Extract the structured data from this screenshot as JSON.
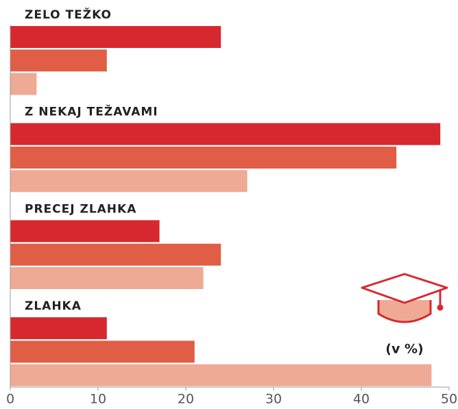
{
  "chart_data": {
    "type": "bar",
    "orientation": "horizontal",
    "categories": [
      "ZELO TEŽKO",
      "Z NEKAJ TEŽAVAMI",
      "PRECEJ ZLAHKA",
      "ZLAHKA"
    ],
    "series": [
      {
        "color": "#d7282f",
        "values": [
          24,
          49,
          17,
          11
        ]
      },
      {
        "color": "#e05e45",
        "values": [
          11,
          44,
          24,
          21
        ]
      },
      {
        "color": "#eeaa94",
        "values": [
          3,
          27,
          22,
          48
        ]
      }
    ],
    "xlim": [
      0,
      50
    ],
    "xticks": [
      0,
      10,
      20,
      30,
      40,
      50
    ],
    "annotation": "(v %)"
  }
}
